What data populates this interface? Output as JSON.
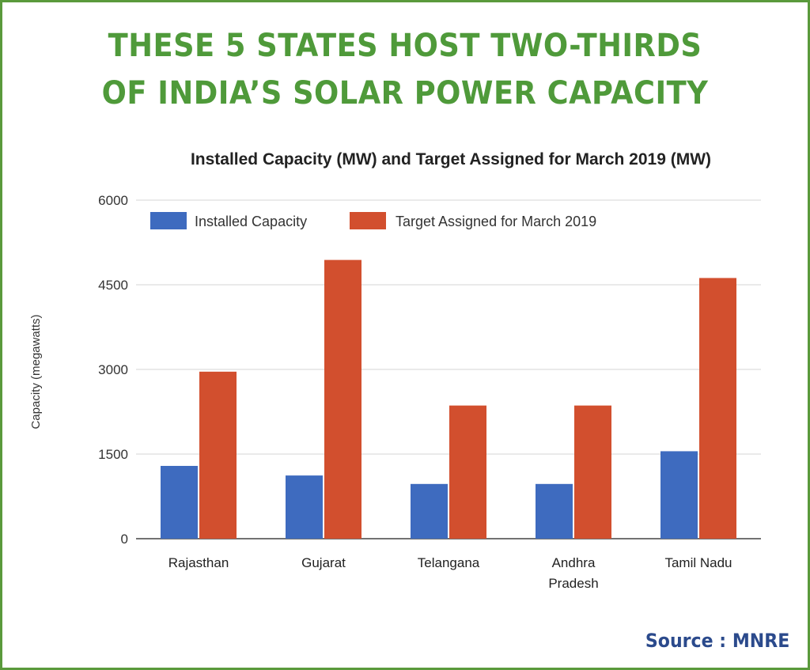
{
  "headline": {
    "line1": "THESE 5 STATES HOST TWO-THIRDS",
    "line2": "OF INDIA’S SOLAR POWER CAPACITY"
  },
  "source": "Source : MNRE",
  "colors": {
    "headline": "#4f9a3a",
    "border": "#5a9a3c",
    "installed": "#3e6bbf",
    "target": "#d24f2e",
    "source": "#2b4a8c"
  },
  "chart_data": {
    "type": "bar",
    "title": "Installed Capacity (MW) and Target Assigned for March 2019 (MW)",
    "xlabel": "",
    "ylabel": "Capacity (megawatts)",
    "categories": [
      "Rajasthan",
      "Gujarat",
      "Telangana",
      "Andhra Pradesh",
      "Tamil Nadu"
    ],
    "category_lines": [
      [
        "Rajasthan"
      ],
      [
        "Gujarat"
      ],
      [
        "Telangana"
      ],
      [
        "Andhra",
        "Pradesh"
      ],
      [
        "Tamil Nadu"
      ]
    ],
    "series": [
      {
        "name": "Installed Capacity",
        "values": [
          1290,
          1120,
          970,
          970,
          1550
        ]
      },
      {
        "name": "Target Assigned for March 2019",
        "values": [
          2960,
          4940,
          2360,
          2360,
          4620
        ]
      }
    ],
    "ylim": [
      0,
      6000
    ],
    "yticks": [
      0,
      1500,
      3000,
      4500,
      6000
    ],
    "grid": true,
    "legend_position": "top-left"
  }
}
